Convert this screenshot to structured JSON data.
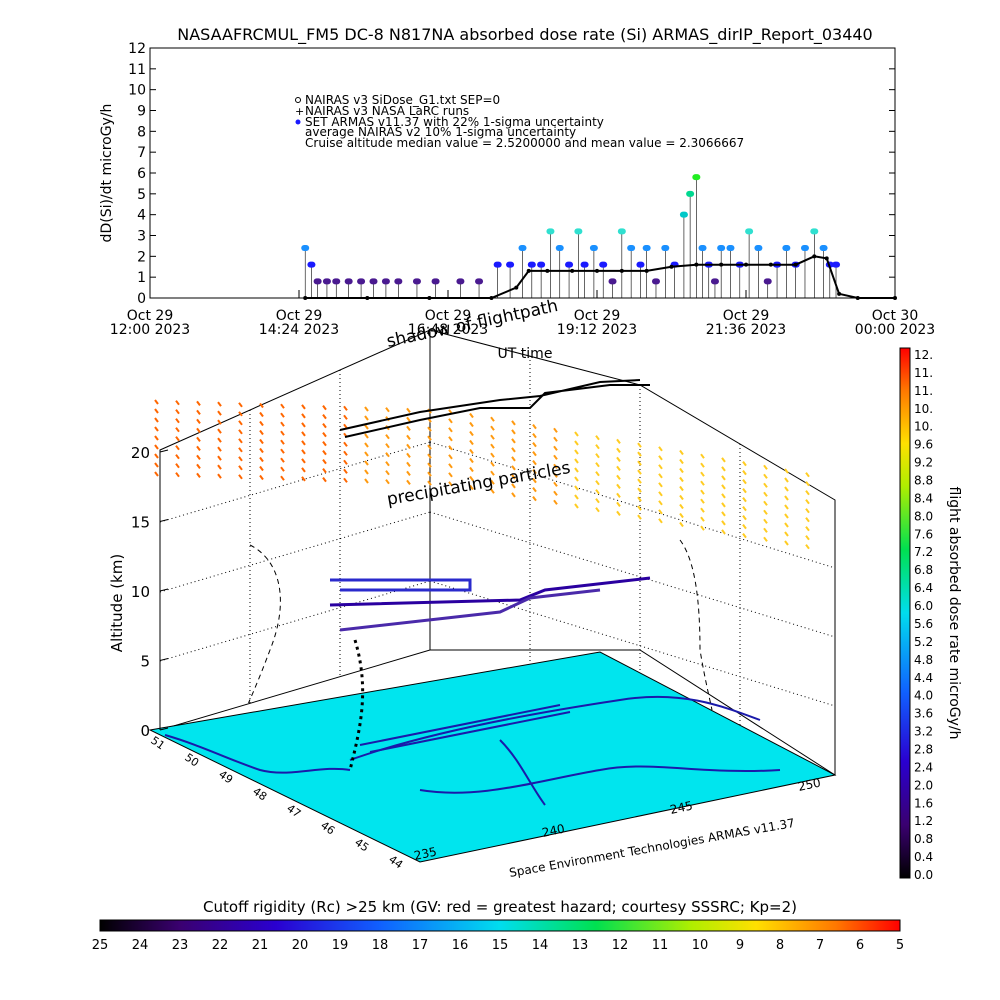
{
  "title": "NASAAFRCMUL_FM5 DC-8   N817NA absorbed dose rate (Si) ARMAS_dirIP_Report_03440",
  "colors": {
    "armas_points": "#1a1aff",
    "larc_points": "#000000",
    "cruise_line": "#000000",
    "map_surface": "#00e5ee",
    "map_lines": "#1a1aaa"
  },
  "chart_data": [
    {
      "type": "scatter",
      "ylabel": "dD(Si)/dt microGy/h",
      "xlabel": "UT time",
      "ylim": [
        0,
        12
      ],
      "yticks": [
        "0",
        "1",
        "2",
        "3",
        "4",
        "5",
        "6",
        "7",
        "8",
        "9",
        "10",
        "11",
        "12"
      ],
      "xticks": [
        {
          "line1": "Oct 29",
          "line2": "12:00 2023"
        },
        {
          "line1": "Oct 29",
          "line2": "14:24 2023"
        },
        {
          "line1": "Oct 29",
          "line2": "16:48 2023"
        },
        {
          "line1": "Oct 29",
          "line2": "19:12 2023"
        },
        {
          "line1": "Oct 29",
          "line2": "21:36 2023"
        },
        {
          "line1": "Oct 30",
          "line2": "00:00 2023"
        }
      ],
      "xlim_hours": [
        12,
        24
      ],
      "legend": [
        "NAIRAS v3 SiDose_G1.txt SEP=0",
        "NAIRAS v3 NASA LaRC runs",
        "SET ARMAS v11.37 with 22% 1-sigma uncertainty",
        "average NAIRAS v2 10% 1-sigma uncertainty",
        "Cruise altitude median value = 2.5200000 and mean value = 2.3066667"
      ],
      "series": [
        {
          "name": "SET ARMAS v11.37 with 22% 1-sigma uncertainty",
          "x_hours": [
            14.5,
            14.6,
            14.7,
            14.85,
            15.0,
            15.2,
            15.4,
            15.6,
            15.8,
            16.0,
            16.3,
            16.6,
            17.0,
            17.3,
            17.6,
            17.8,
            18.0,
            18.15,
            18.3,
            18.45,
            18.6,
            18.75,
            18.9,
            19.0,
            19.15,
            19.3,
            19.45,
            19.6,
            19.75,
            19.9,
            20.0,
            20.15,
            20.3,
            20.45,
            20.6,
            20.7,
            20.8,
            20.9,
            21.0,
            21.1,
            21.2,
            21.35,
            21.5,
            21.65,
            21.8,
            21.95,
            22.1,
            22.25,
            22.4,
            22.55,
            22.7,
            22.85,
            22.95,
            23.05
          ],
          "y": [
            2.4,
            1.6,
            0.8,
            0.8,
            0.8,
            0.8,
            0.8,
            0.8,
            0.8,
            0.8,
            0.8,
            0.8,
            0.8,
            0.8,
            1.6,
            1.6,
            2.4,
            1.6,
            1.6,
            3.2,
            2.4,
            1.6,
            3.2,
            1.6,
            2.4,
            1.6,
            0.8,
            3.2,
            2.4,
            1.6,
            2.4,
            0.8,
            2.4,
            1.6,
            4.0,
            5.0,
            5.8,
            2.4,
            1.6,
            0.8,
            2.4,
            2.4,
            1.6,
            3.2,
            2.4,
            0.8,
            1.6,
            2.4,
            1.6,
            2.4,
            3.2,
            2.4,
            1.6,
            1.6
          ]
        },
        {
          "name": "NAIRAS v3 NASA LaRC runs",
          "x_hours": [
            14.5,
            15.5,
            16.5,
            17.5,
            17.9,
            18.1,
            18.4,
            18.8,
            19.2,
            19.6,
            20.0,
            20.4,
            20.8,
            21.2,
            21.6,
            22.0,
            22.4,
            22.7,
            22.9,
            23.1,
            23.4,
            24.0
          ],
          "y": [
            0,
            0,
            0,
            0,
            0.5,
            1.3,
            1.3,
            1.3,
            1.3,
            1.3,
            1.3,
            1.5,
            1.6,
            1.6,
            1.6,
            1.6,
            1.6,
            2.0,
            1.9,
            0.2,
            0,
            0
          ]
        }
      ]
    },
    {
      "type": "scatter",
      "ylabel": "Altitude (km)",
      "zticks": [
        "0",
        "5",
        "10",
        "15",
        "20"
      ],
      "lat_ticks": [
        "51",
        "50",
        "49",
        "48",
        "47",
        "46",
        "45",
        "44"
      ],
      "lon_ticks": [
        "235",
        "240",
        "245",
        "250"
      ],
      "annotations": [
        "shadow of flightpath",
        "precipitating particles"
      ],
      "footer_text": "Space Environment Technologies ARMAS v11.37"
    }
  ],
  "colorbar_right": {
    "label": "flight absorbed dose rate microGy/h",
    "ticks": [
      "0.0",
      "0.4",
      "0.8",
      "1.2",
      "1.6",
      "2.0",
      "2.4",
      "2.8",
      "3.2",
      "3.6",
      "4.0",
      "4.4",
      "4.8",
      "5.2",
      "5.6",
      "6.0",
      "6.4",
      "6.8",
      "7.2",
      "7.6",
      "8.0",
      "8.4",
      "8.8",
      "9.2",
      "9.6",
      "10.",
      "10.",
      "11.",
      "11.",
      "12."
    ]
  },
  "colorbar_bottom": {
    "title": "Cutoff rigidity (Rc) >25 km (GV: red = greatest hazard; courtesy SSSRC; Kp=2)",
    "ticks": [
      "25",
      "24",
      "23",
      "22",
      "21",
      "20",
      "19",
      "18",
      "17",
      "16",
      "15",
      "14",
      "13",
      "12",
      "11",
      "10",
      "9",
      "8",
      "7",
      "6",
      "5"
    ]
  }
}
